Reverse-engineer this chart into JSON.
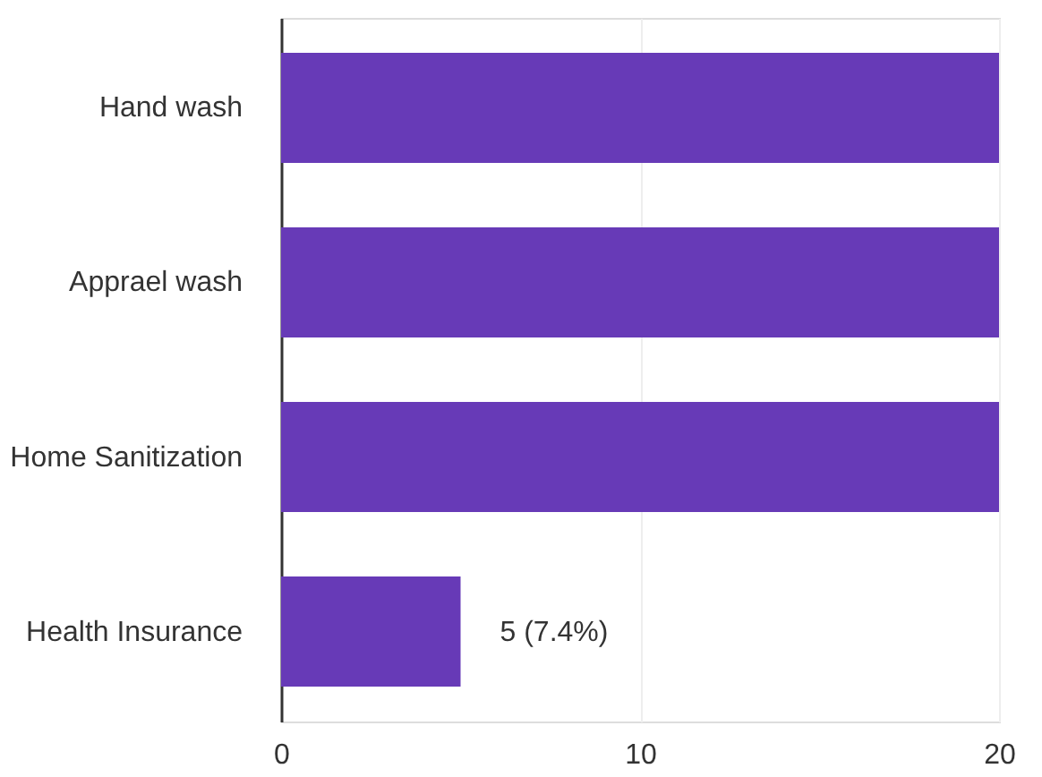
{
  "chart_data": {
    "type": "bar",
    "orientation": "horizontal",
    "categories": [
      "Hand wash",
      "Apprael wash",
      "Home Sanitization",
      "Health Insurance"
    ],
    "values": [
      20,
      20,
      20,
      5
    ],
    "value_labels": [
      null,
      null,
      null,
      "5 (7.4%)"
    ],
    "color": "#673ab7",
    "xlim": [
      0,
      20
    ],
    "xticks": [
      0,
      10,
      20
    ],
    "grid": "x"
  }
}
